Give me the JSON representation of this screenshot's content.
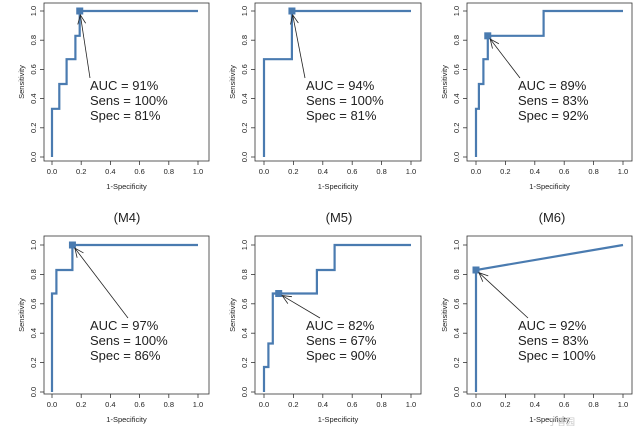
{
  "colors": {
    "line": "#4a7bb0",
    "marker": "#4a7bb0",
    "text": "#222222"
  },
  "chart_data": [
    {
      "type": "line",
      "caption": "",
      "xlabel": "1-Specificity",
      "ylabel": "Sensitivity",
      "xlim": [
        0,
        1
      ],
      "ylim": [
        0,
        1
      ],
      "xticks": [
        "0.0",
        "0.2",
        "0.4",
        "0.6",
        "0.8",
        "1.0"
      ],
      "yticks": [
        "0.0",
        "0.2",
        "0.4",
        "0.6",
        "0.8",
        "1.0"
      ],
      "x": [
        0,
        0,
        0.05,
        0.05,
        0.1,
        0.1,
        0.16,
        0.16,
        0.19,
        0.19,
        1.0
      ],
      "y": [
        0,
        0.33,
        0.33,
        0.5,
        0.5,
        0.67,
        0.67,
        0.83,
        0.83,
        1.0,
        1.0
      ],
      "marker": {
        "x": 0.19,
        "y": 1.0
      },
      "annotations": [
        "AUC = 91%",
        "Sens = 100%",
        "Spec = 81%"
      ]
    },
    {
      "type": "line",
      "caption": "",
      "xlabel": "1-Specificity",
      "ylabel": "Sensitivity",
      "xlim": [
        0,
        1
      ],
      "ylim": [
        0,
        1
      ],
      "xticks": [
        "0.0",
        "0.2",
        "0.4",
        "0.6",
        "0.8",
        "1.0"
      ],
      "yticks": [
        "0.0",
        "0.2",
        "0.4",
        "0.6",
        "0.8",
        "1.0"
      ],
      "x": [
        0,
        0,
        0.19,
        0.19,
        0.19,
        1.0
      ],
      "y": [
        0,
        0.67,
        0.67,
        0.83,
        1.0,
        1.0
      ],
      "marker": {
        "x": 0.19,
        "y": 1.0
      },
      "annotations": [
        "AUC = 94%",
        "Sens = 100%",
        "Spec = 81%"
      ]
    },
    {
      "type": "line",
      "caption": "",
      "xlabel": "1-Specificity",
      "ylabel": "Sensitivity",
      "xlim": [
        0,
        1
      ],
      "ylim": [
        0,
        1
      ],
      "xticks": [
        "0.0",
        "0.2",
        "0.4",
        "0.6",
        "0.8",
        "1.0"
      ],
      "yticks": [
        "0.0",
        "0.2",
        "0.4",
        "0.6",
        "0.8",
        "1.0"
      ],
      "x": [
        0,
        0,
        0.02,
        0.02,
        0.05,
        0.05,
        0.08,
        0.08,
        0.46,
        0.46,
        1.0
      ],
      "y": [
        0,
        0.33,
        0.33,
        0.5,
        0.5,
        0.67,
        0.67,
        0.83,
        0.83,
        1.0,
        1.0
      ],
      "marker": {
        "x": 0.08,
        "y": 0.83
      },
      "annotations": [
        "AUC = 89%",
        "Sens = 83%",
        "Spec = 92%"
      ]
    },
    {
      "type": "line",
      "caption": "(M4)",
      "xlabel": "1-Specificity",
      "ylabel": "Sensitivity",
      "xlim": [
        0,
        1
      ],
      "ylim": [
        0,
        1
      ],
      "xticks": [
        "0.0",
        "0.2",
        "0.4",
        "0.6",
        "0.8",
        "1.0"
      ],
      "yticks": [
        "0.0",
        "0.2",
        "0.4",
        "0.6",
        "0.8",
        "1.0"
      ],
      "x": [
        0,
        0,
        0.03,
        0.03,
        0.14,
        0.14,
        1.0
      ],
      "y": [
        0,
        0.67,
        0.67,
        0.83,
        0.83,
        1.0,
        1.0
      ],
      "marker": {
        "x": 0.14,
        "y": 1.0
      },
      "annotations": [
        "AUC = 97%",
        "Sens = 100%",
        "Spec = 86%"
      ]
    },
    {
      "type": "line",
      "caption": "(M5)",
      "xlabel": "1-Specificity",
      "ylabel": "Sensitivity",
      "xlim": [
        0,
        1
      ],
      "ylim": [
        0,
        1
      ],
      "xticks": [
        "0.0",
        "0.2",
        "0.4",
        "0.6",
        "0.8",
        "1.0"
      ],
      "yticks": [
        "0.0",
        "0.2",
        "0.4",
        "0.6",
        "0.8",
        "1.0"
      ],
      "x": [
        0,
        0,
        0.03,
        0.03,
        0.06,
        0.06,
        0.1,
        0.1,
        0.36,
        0.36,
        0.48,
        0.48,
        1.0
      ],
      "y": [
        0,
        0.17,
        0.17,
        0.33,
        0.33,
        0.67,
        0.67,
        0.67,
        0.67,
        0.83,
        0.83,
        1.0,
        1.0
      ],
      "marker": {
        "x": 0.1,
        "y": 0.67
      },
      "annotations": [
        "AUC = 82%",
        "Sens = 67%",
        "Spec = 90%"
      ]
    },
    {
      "type": "line",
      "caption": "(M6)",
      "xlabel": "1-Specificity",
      "ylabel": "Sensitivity",
      "xlim": [
        0,
        1
      ],
      "ylim": [
        0,
        1
      ],
      "xticks": [
        "0.0",
        "0.2",
        "0.4",
        "0.6",
        "0.8",
        "1.0"
      ],
      "yticks": [
        "0.0",
        "0.2",
        "0.4",
        "0.6",
        "0.8",
        "1.0"
      ],
      "x": [
        0,
        0,
        1.0
      ],
      "y": [
        0,
        0.83,
        1.0
      ],
      "marker": {
        "x": 0.0,
        "y": 0.83
      },
      "annotations": [
        "AUC = 92%",
        "Sens = 83%",
        "Spec = 100%"
      ]
    }
  ],
  "watermark": "丁香园"
}
